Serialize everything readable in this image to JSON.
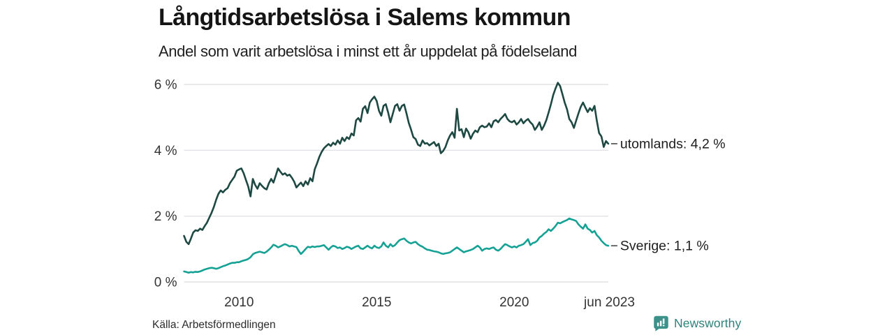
{
  "header": {
    "title": "Långtidsarbetslösa i Salems kommun",
    "subtitle": "Andel som varit arbetslösa i minst ett år uppdelat på födelseland"
  },
  "footer": {
    "source": "Källa: Arbetsförmedlingen",
    "brand": "Newsworthy"
  },
  "colors": {
    "series_foreign_born": "#1d4942",
    "series_sweden_born": "#16a195",
    "gridline": "#e2e2e6",
    "tick_text": "#333333",
    "brand_teal": "#3c918b"
  },
  "chart_data": {
    "type": "line",
    "title": "Långtidsarbetslösa i Salems kommun",
    "subtitle": "Andel som varit arbetslösa i minst ett år uppdelat på födelseland",
    "x_unit": "month",
    "x_start_year": 2008,
    "x_end_label": "jun 2023",
    "ylim": [
      0,
      6.4
    ],
    "grid": "horizontal",
    "legend_position": "line-end-labels",
    "y_ticks": [
      {
        "value": 0,
        "label": "0 %"
      },
      {
        "value": 2,
        "label": "2 %"
      },
      {
        "value": 4,
        "label": "4 %"
      },
      {
        "value": 6,
        "label": "6 %"
      }
    ],
    "x_ticks": [
      {
        "value": 2010,
        "label": "2010"
      },
      {
        "value": 2015,
        "label": "2015"
      },
      {
        "value": 2020,
        "label": "2020"
      },
      {
        "value": 2023.458,
        "label": "jun 2023"
      }
    ],
    "series": [
      {
        "name": "utomlands",
        "end_label": "utomlands: 4,2 %",
        "last_value_label": "4,2 %",
        "color": "#1d4942",
        "values": [
          1.4,
          1.22,
          1.15,
          1.32,
          1.5,
          1.57,
          1.55,
          1.62,
          1.58,
          1.7,
          1.8,
          1.95,
          2.1,
          2.28,
          2.5,
          2.68,
          2.78,
          2.72,
          2.8,
          2.85,
          3.0,
          3.1,
          3.2,
          3.38,
          3.42,
          3.45,
          3.3,
          3.1,
          2.9,
          2.6,
          3.13,
          2.95,
          2.83,
          3.0,
          2.92,
          2.85,
          2.81,
          3.0,
          3.13,
          3.02,
          3.23,
          3.45,
          3.35,
          3.26,
          3.3,
          3.23,
          3.26,
          3.17,
          3.05,
          2.87,
          2.95,
          3.02,
          2.91,
          3.06,
          2.96,
          3.15,
          3.06,
          3.42,
          3.6,
          3.8,
          3.95,
          4.06,
          4.13,
          4.19,
          4.13,
          4.23,
          4.17,
          4.3,
          4.2,
          4.38,
          4.28,
          4.4,
          4.34,
          4.51,
          4.45,
          4.91,
          4.98,
          4.87,
          5.26,
          5.34,
          5.13,
          5.45,
          5.55,
          5.63,
          5.5,
          5.2,
          5.05,
          5.35,
          5.4,
          5.15,
          4.85,
          5.1,
          5.35,
          5.4,
          5.2,
          5.35,
          5.39,
          5.12,
          4.83,
          4.63,
          4.4,
          4.34,
          4.17,
          4.13,
          4.3,
          4.2,
          4.22,
          4.15,
          4.2,
          4.25,
          4.13,
          4.2,
          3.91,
          3.98,
          4.1,
          4.3,
          4.45,
          4.55,
          4.38,
          5.26,
          4.6,
          4.64,
          4.4,
          4.66,
          4.55,
          4.35,
          4.5,
          4.6,
          4.55,
          4.7,
          4.75,
          4.7,
          4.72,
          4.82,
          4.7,
          4.88,
          4.92,
          4.85,
          4.95,
          5.02,
          5.1,
          4.95,
          4.88,
          4.85,
          4.9,
          4.78,
          4.85,
          4.95,
          4.82,
          4.9,
          4.95,
          4.85,
          4.78,
          4.62,
          4.72,
          4.85,
          4.62,
          4.75,
          4.92,
          5.15,
          5.4,
          5.68,
          5.88,
          6.05,
          5.95,
          5.7,
          5.45,
          5.25,
          4.95,
          4.85,
          4.68,
          4.9,
          5.12,
          5.32,
          5.45,
          5.3,
          5.16,
          5.28,
          5.2,
          5.35,
          4.9,
          4.52,
          4.42,
          4.1,
          4.28,
          4.2
        ]
      },
      {
        "name": "Sverige",
        "end_label": "Sverige: 1,1 %",
        "last_value_label": "1,1 %",
        "color": "#16a195",
        "values": [
          0.32,
          0.3,
          0.28,
          0.3,
          0.29,
          0.31,
          0.3,
          0.32,
          0.35,
          0.38,
          0.4,
          0.42,
          0.43,
          0.42,
          0.4,
          0.42,
          0.45,
          0.48,
          0.5,
          0.53,
          0.56,
          0.58,
          0.58,
          0.6,
          0.6,
          0.63,
          0.65,
          0.67,
          0.7,
          0.75,
          0.84,
          0.88,
          0.9,
          0.92,
          0.9,
          0.88,
          0.92,
          0.98,
          1.05,
          1.13,
          1.1,
          1.05,
          1.08,
          1.12,
          1.15,
          1.12,
          1.08,
          1.1,
          1.08,
          1.06,
          0.94,
          0.85,
          0.92,
          1.0,
          1.07,
          1.05,
          1.08,
          1.06,
          1.08,
          1.08,
          1.1,
          1.12,
          1.05,
          0.98,
          1.05,
          1.1,
          1.08,
          1.03,
          1.05,
          1.0,
          1.03,
          1.07,
          1.05,
          1.0,
          1.04,
          1.08,
          1.1,
          1.02,
          1.0,
          1.05,
          1.1,
          1.05,
          1.02,
          1.1,
          1.05,
          1.03,
          1.08,
          1.2,
          1.1,
          1.05,
          1.15,
          1.08,
          1.12,
          1.2,
          1.27,
          1.3,
          1.32,
          1.25,
          1.2,
          1.17,
          1.2,
          1.22,
          1.15,
          1.1,
          1.07,
          1.02,
          0.98,
          0.97,
          0.95,
          0.93,
          0.92,
          0.9,
          0.87,
          0.85,
          0.87,
          0.88,
          0.9,
          0.95,
          1.0,
          1.05,
          1.0,
          0.95,
          0.9,
          0.93,
          0.95,
          0.97,
          1.0,
          1.05,
          1.1,
          1.05,
          0.95,
          1.0,
          1.02,
          1.0,
          1.03,
          1.05,
          0.98,
          0.95,
          1.0,
          1.08,
          1.15,
          1.12,
          1.08,
          1.05,
          1.08,
          1.05,
          1.1,
          1.12,
          1.15,
          1.22,
          1.3,
          1.12,
          1.18,
          1.2,
          1.25,
          1.35,
          1.4,
          1.47,
          1.52,
          1.6,
          1.55,
          1.62,
          1.7,
          1.8,
          1.78,
          1.82,
          1.85,
          1.88,
          1.93,
          1.9,
          1.88,
          1.85,
          1.75,
          1.68,
          1.62,
          1.75,
          1.62,
          1.58,
          1.5,
          1.55,
          1.42,
          1.35,
          1.25,
          1.18,
          1.12,
          1.1
        ]
      }
    ]
  }
}
